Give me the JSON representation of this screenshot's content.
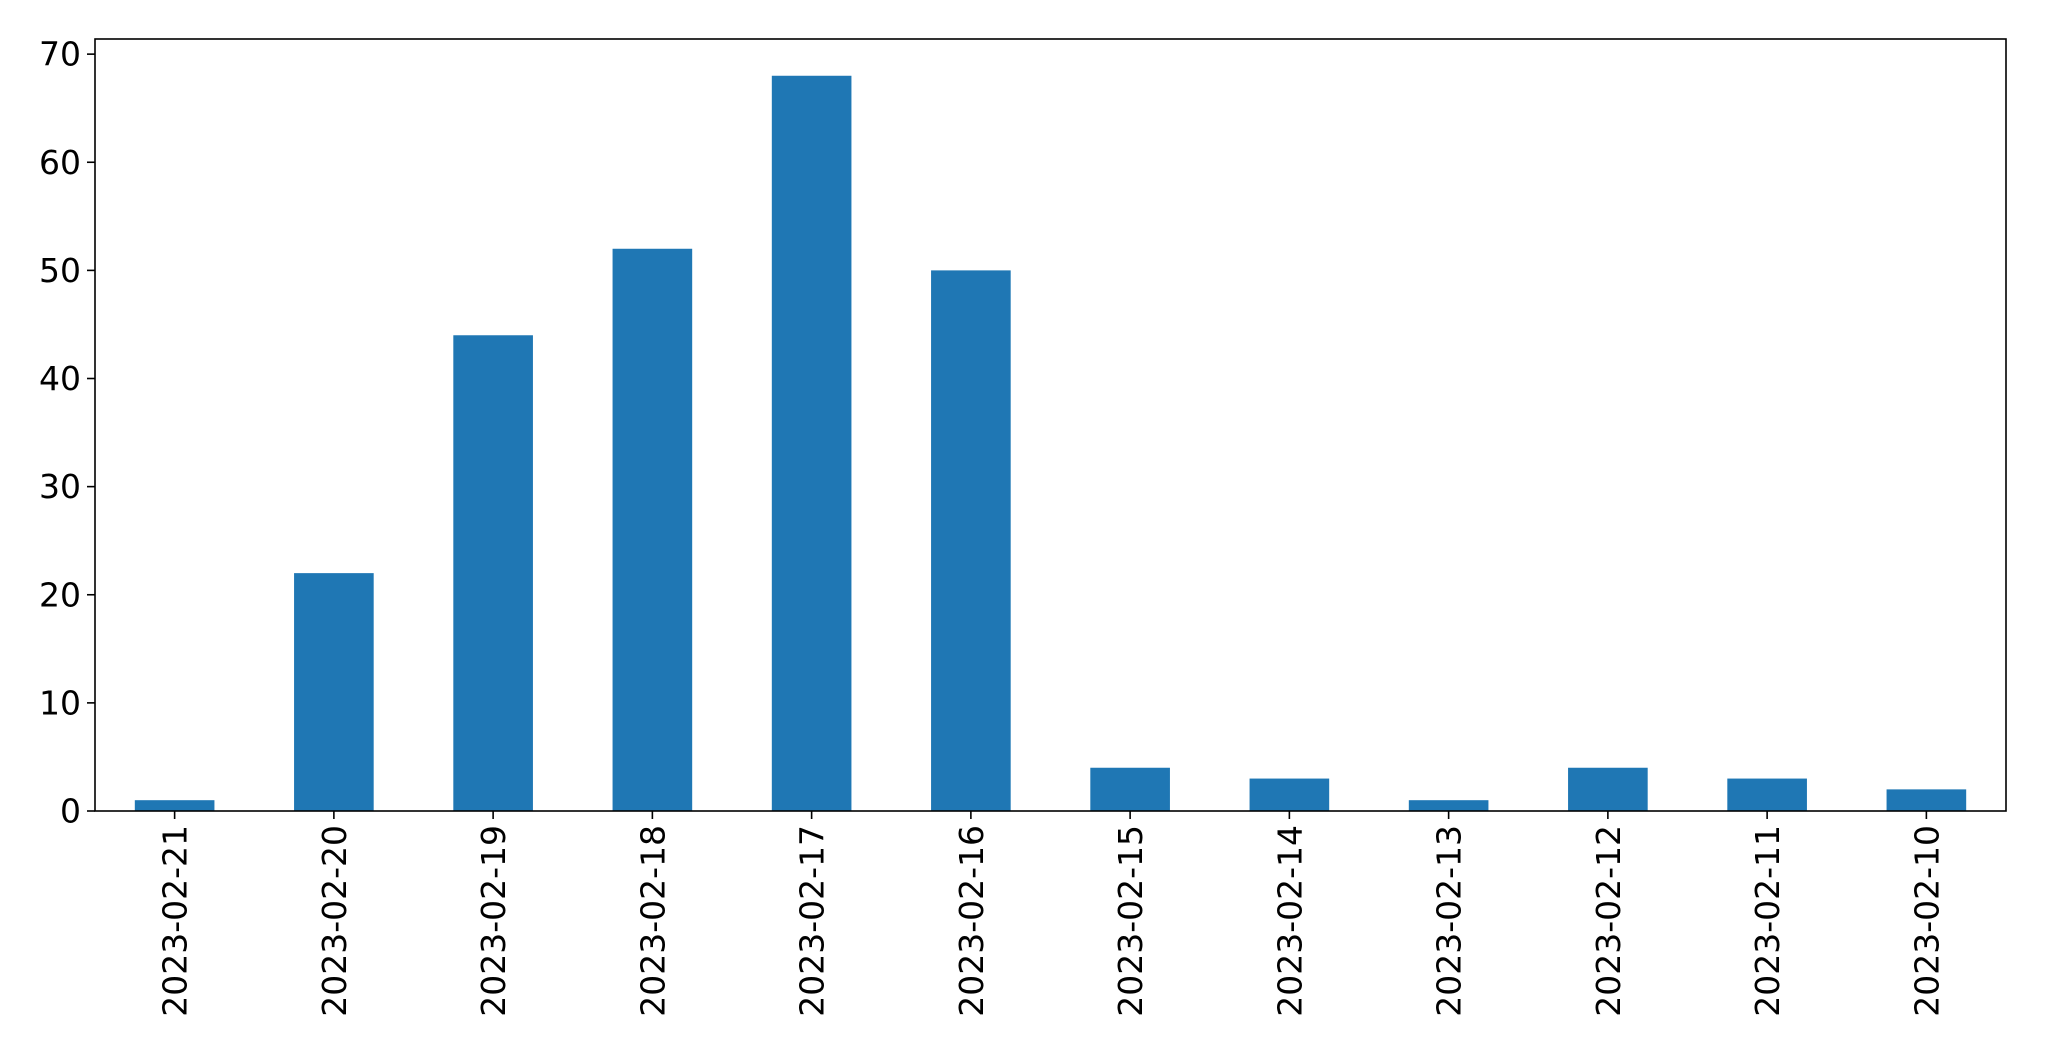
{
  "chart_data": {
    "type": "bar",
    "title": "",
    "xlabel": "",
    "ylabel": "",
    "categories": [
      "2023-02-21",
      "2023-02-20",
      "2023-02-19",
      "2023-02-18",
      "2023-02-17",
      "2023-02-16",
      "2023-02-15",
      "2023-02-14",
      "2023-02-13",
      "2023-02-12",
      "2023-02-11",
      "2023-02-10"
    ],
    "values": [
      1,
      22,
      44,
      52,
      68,
      50,
      4,
      3,
      1,
      4,
      3,
      2
    ],
    "ylim": [
      0,
      71.4
    ],
    "yticks": [
      0,
      10,
      20,
      30,
      40,
      50,
      60,
      70
    ],
    "bar_color": "#1f77b4",
    "grid": false,
    "legend": "none"
  }
}
